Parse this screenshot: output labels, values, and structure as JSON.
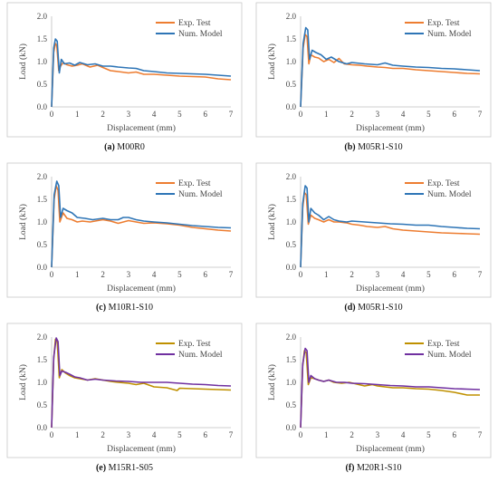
{
  "chart_data": [
    {
      "type": "line",
      "caption_letter": "(a)",
      "caption_name": "M00R0",
      "xlabel": "Displacement (mm)",
      "ylabel": "Load (kN)",
      "xlim": [
        0,
        7
      ],
      "ylim": [
        0,
        2.0
      ],
      "xticks": [
        "0",
        "1",
        "2",
        "3",
        "4",
        "5",
        "6",
        "7"
      ],
      "yticks": [
        "0.0",
        "0.5",
        "1.0",
        "1.5",
        "2.0"
      ],
      "legend": "top-right",
      "series": [
        {
          "name": "Exp. Test",
          "color": "#ed7d31",
          "x": [
            0,
            0.08,
            0.15,
            0.2,
            0.28,
            0.35,
            0.45,
            0.6,
            0.8,
            1.0,
            1.2,
            1.5,
            1.8,
            2.0,
            2.3,
            2.6,
            3.0,
            3.3,
            3.6,
            4.0,
            4.5,
            5.0,
            5.5,
            6.0,
            6.5,
            7.0
          ],
          "y": [
            0,
            1.2,
            1.4,
            1.35,
            0.8,
            0.9,
            0.98,
            0.93,
            0.9,
            0.92,
            0.95,
            0.88,
            0.92,
            0.87,
            0.8,
            0.78,
            0.75,
            0.77,
            0.72,
            0.72,
            0.7,
            0.68,
            0.67,
            0.66,
            0.62,
            0.6
          ]
        },
        {
          "name": "Num. Model",
          "color": "#2e75b6",
          "x": [
            0,
            0.08,
            0.15,
            0.22,
            0.3,
            0.38,
            0.5,
            0.7,
            0.9,
            1.1,
            1.4,
            1.7,
            2.0,
            2.3,
            2.6,
            3.0,
            3.3,
            3.6,
            4.0,
            4.5,
            5.0,
            5.5,
            6.0,
            6.5,
            7.0
          ],
          "y": [
            0,
            1.3,
            1.5,
            1.45,
            0.75,
            1.05,
            0.95,
            0.97,
            0.92,
            0.98,
            0.93,
            0.95,
            0.9,
            0.9,
            0.88,
            0.86,
            0.85,
            0.8,
            0.78,
            0.75,
            0.74,
            0.73,
            0.72,
            0.7,
            0.68
          ]
        }
      ]
    },
    {
      "type": "line",
      "caption_letter": "(b)",
      "caption_name": "M05R1-S10",
      "xlabel": "Displacement (mm)",
      "ylabel": "Load (kN)",
      "xlim": [
        0,
        7
      ],
      "ylim": [
        0,
        2.0
      ],
      "xticks": [
        "0",
        "1",
        "2",
        "3",
        "4",
        "5",
        "6",
        "7"
      ],
      "yticks": [
        "0.0",
        "0.5",
        "1.0",
        "1.5",
        "2.0"
      ],
      "legend": "top-right",
      "series": [
        {
          "name": "Exp. Test",
          "color": "#ed7d31",
          "x": [
            0,
            0.1,
            0.18,
            0.25,
            0.32,
            0.4,
            0.55,
            0.7,
            0.9,
            1.1,
            1.3,
            1.5,
            1.7,
            2.0,
            2.3,
            2.6,
            3.0,
            3.3,
            3.6,
            4.0,
            4.5,
            5.0,
            5.5,
            6.0,
            6.5,
            7.0
          ],
          "y": [
            0,
            1.3,
            1.6,
            1.55,
            0.95,
            1.15,
            1.1,
            1.08,
            1.0,
            1.05,
            0.98,
            1.07,
            0.95,
            0.93,
            0.92,
            0.9,
            0.88,
            0.87,
            0.85,
            0.85,
            0.82,
            0.8,
            0.78,
            0.76,
            0.74,
            0.73
          ]
        },
        {
          "name": "Num. Model",
          "color": "#2e75b6",
          "x": [
            0,
            0.1,
            0.2,
            0.28,
            0.35,
            0.45,
            0.6,
            0.8,
            1.0,
            1.2,
            1.5,
            1.8,
            2.0,
            2.5,
            3.0,
            3.3,
            3.6,
            4.0,
            4.5,
            5.0,
            5.5,
            6.0,
            6.5,
            7.0
          ],
          "y": [
            0,
            1.4,
            1.75,
            1.7,
            1.05,
            1.25,
            1.2,
            1.15,
            1.05,
            1.1,
            1.0,
            0.95,
            0.98,
            0.95,
            0.93,
            0.97,
            0.92,
            0.9,
            0.88,
            0.87,
            0.85,
            0.84,
            0.82,
            0.8
          ]
        }
      ]
    },
    {
      "type": "line",
      "caption_letter": "(c)",
      "caption_name": "M10R1-S10",
      "xlabel": "Displacement (mm)",
      "ylabel": "Load (kN)",
      "xlim": [
        0,
        7
      ],
      "ylim": [
        0,
        2.0
      ],
      "xticks": [
        "0",
        "1",
        "2",
        "3",
        "4",
        "5",
        "6",
        "7"
      ],
      "yticks": [
        "0.0",
        "0.5",
        "1.0",
        "1.5",
        "2.0"
      ],
      "legend": "top-right",
      "series": [
        {
          "name": "Exp. Test",
          "color": "#ed7d31",
          "x": [
            0,
            0.1,
            0.18,
            0.25,
            0.32,
            0.45,
            0.6,
            0.8,
            1.0,
            1.2,
            1.5,
            1.8,
            2.0,
            2.3,
            2.6,
            2.8,
            3.0,
            3.3,
            3.6,
            4.0,
            4.5,
            5.0,
            5.5,
            6.0,
            6.5,
            7.0
          ],
          "y": [
            0,
            1.5,
            1.8,
            1.7,
            1.0,
            1.2,
            1.08,
            1.05,
            1.0,
            1.02,
            1.0,
            1.03,
            1.05,
            1.02,
            0.97,
            1.0,
            1.03,
            1.0,
            0.97,
            0.98,
            0.96,
            0.93,
            0.88,
            0.85,
            0.82,
            0.8
          ]
        },
        {
          "name": "Num. Model",
          "color": "#2e75b6",
          "x": [
            0,
            0.1,
            0.2,
            0.28,
            0.35,
            0.45,
            0.6,
            0.8,
            1.0,
            1.3,
            1.6,
            2.0,
            2.3,
            2.6,
            2.8,
            3.0,
            3.3,
            3.6,
            4.0,
            4.5,
            5.0,
            5.5,
            6.0,
            6.5,
            7.0
          ],
          "y": [
            0,
            1.6,
            1.9,
            1.8,
            1.1,
            1.3,
            1.25,
            1.2,
            1.1,
            1.08,
            1.05,
            1.08,
            1.05,
            1.05,
            1.1,
            1.1,
            1.05,
            1.02,
            1.0,
            0.98,
            0.95,
            0.92,
            0.9,
            0.88,
            0.87
          ]
        }
      ]
    },
    {
      "type": "line",
      "caption_letter": "(d)",
      "caption_name": "M05R1-S10",
      "xlabel": "Displacement (mm)",
      "ylabel": "Load (kN)",
      "xlim": [
        0,
        7
      ],
      "ylim": [
        0,
        2.0
      ],
      "xticks": [
        "0",
        "1",
        "2",
        "3",
        "4",
        "5",
        "6",
        "7"
      ],
      "yticks": [
        "0.0",
        "0.5",
        "1.0",
        "1.5",
        "2.0"
      ],
      "legend": "top-right",
      "series": [
        {
          "name": "Exp. Test",
          "color": "#ed7d31",
          "x": [
            0,
            0.08,
            0.15,
            0.22,
            0.3,
            0.4,
            0.55,
            0.7,
            0.9,
            1.1,
            1.3,
            1.5,
            1.8,
            2.0,
            2.3,
            2.6,
            3.0,
            3.3,
            3.6,
            4.0,
            4.5,
            5.0,
            5.5,
            6.0,
            6.5,
            7.0
          ],
          "y": [
            0,
            1.3,
            1.65,
            1.6,
            0.95,
            1.15,
            1.08,
            1.05,
            1.0,
            1.05,
            1.0,
            1.0,
            0.98,
            0.95,
            0.93,
            0.9,
            0.88,
            0.9,
            0.85,
            0.82,
            0.8,
            0.78,
            0.76,
            0.75,
            0.74,
            0.73
          ]
        },
        {
          "name": "Num. Model",
          "color": "#2e75b6",
          "x": [
            0,
            0.08,
            0.18,
            0.25,
            0.32,
            0.4,
            0.55,
            0.7,
            0.9,
            1.1,
            1.3,
            1.5,
            1.8,
            2.0,
            2.5,
            3.0,
            3.5,
            4.0,
            4.5,
            5.0,
            5.5,
            6.0,
            6.5,
            7.0
          ],
          "y": [
            0,
            1.4,
            1.8,
            1.75,
            1.0,
            1.3,
            1.2,
            1.15,
            1.05,
            1.12,
            1.05,
            1.02,
            1.0,
            1.02,
            1.0,
            0.98,
            0.96,
            0.95,
            0.93,
            0.93,
            0.9,
            0.88,
            0.86,
            0.85
          ]
        }
      ]
    },
    {
      "type": "line",
      "caption_letter": "(e)",
      "caption_name": "M15R1-S05",
      "xlabel": "Displacement (mm)",
      "ylabel": "Load (kN)",
      "xlim": [
        0,
        7
      ],
      "ylim": [
        0,
        2.0
      ],
      "xticks": [
        "0",
        "1",
        "2",
        "3",
        "4",
        "5",
        "6",
        "7"
      ],
      "yticks": [
        "0.0",
        "0.5",
        "1.0",
        "1.5",
        "2.0"
      ],
      "legend": "top-right",
      "series": [
        {
          "name": "Exp. Test",
          "color": "#bf9000",
          "x": [
            0,
            0.08,
            0.15,
            0.22,
            0.3,
            0.4,
            0.55,
            0.7,
            0.9,
            1.1,
            1.4,
            1.7,
            2.0,
            2.3,
            2.6,
            3.0,
            3.3,
            3.6,
            4.0,
            4.5,
            4.9,
            5.0,
            5.5,
            6.0,
            6.5,
            7.0
          ],
          "y": [
            0,
            1.5,
            1.95,
            1.9,
            1.1,
            1.28,
            1.2,
            1.15,
            1.1,
            1.08,
            1.05,
            1.08,
            1.05,
            1.02,
            1.0,
            0.98,
            0.95,
            0.98,
            0.9,
            0.88,
            0.82,
            0.87,
            0.86,
            0.85,
            0.84,
            0.83
          ]
        },
        {
          "name": "Num. Model",
          "color": "#7030a0",
          "x": [
            0,
            0.08,
            0.18,
            0.25,
            0.32,
            0.4,
            0.55,
            0.7,
            0.9,
            1.1,
            1.4,
            1.7,
            2.0,
            2.5,
            3.0,
            3.5,
            4.0,
            4.5,
            5.0,
            5.5,
            6.0,
            6.5,
            7.0
          ],
          "y": [
            0,
            1.55,
            1.98,
            1.9,
            1.15,
            1.25,
            1.22,
            1.18,
            1.12,
            1.1,
            1.05,
            1.07,
            1.05,
            1.03,
            1.02,
            1.0,
            1.0,
            1.0,
            0.98,
            0.96,
            0.95,
            0.93,
            0.92
          ]
        }
      ]
    },
    {
      "type": "line",
      "caption_letter": "(f)",
      "caption_name": "M20R1-S10",
      "xlabel": "Displacement (mm)",
      "ylabel": "Load (kN)",
      "xlim": [
        0,
        7
      ],
      "ylim": [
        0,
        2.0
      ],
      "xticks": [
        "0",
        "1",
        "2",
        "3",
        "4",
        "5",
        "6",
        "7"
      ],
      "yticks": [
        "0.0",
        "0.5",
        "1.0",
        "1.5",
        "2.0"
      ],
      "legend": "top-right",
      "series": [
        {
          "name": "Exp. Test",
          "color": "#bf9000",
          "x": [
            0,
            0.08,
            0.15,
            0.22,
            0.3,
            0.4,
            0.55,
            0.7,
            0.9,
            1.1,
            1.3,
            1.6,
            1.9,
            2.2,
            2.5,
            2.8,
            3.0,
            3.3,
            3.6,
            4.0,
            4.5,
            5.0,
            5.5,
            6.0,
            6.5,
            7.0
          ],
          "y": [
            0,
            1.35,
            1.7,
            1.65,
            0.95,
            1.1,
            1.08,
            1.05,
            1.02,
            1.05,
            1.0,
            0.98,
            1.0,
            0.96,
            0.92,
            0.95,
            0.92,
            0.9,
            0.88,
            0.88,
            0.86,
            0.85,
            0.82,
            0.78,
            0.72,
            0.72
          ]
        },
        {
          "name": "Num. Model",
          "color": "#7030a0",
          "x": [
            0,
            0.08,
            0.18,
            0.25,
            0.32,
            0.4,
            0.55,
            0.7,
            0.9,
            1.1,
            1.4,
            1.7,
            2.0,
            2.5,
            3.0,
            3.5,
            4.0,
            4.5,
            5.0,
            5.5,
            6.0,
            6.5,
            7.0
          ],
          "y": [
            0,
            1.4,
            1.75,
            1.7,
            1.0,
            1.15,
            1.08,
            1.05,
            1.02,
            1.05,
            1.0,
            1.0,
            0.98,
            0.97,
            0.95,
            0.93,
            0.92,
            0.9,
            0.9,
            0.88,
            0.86,
            0.85,
            0.84
          ]
        }
      ]
    }
  ]
}
